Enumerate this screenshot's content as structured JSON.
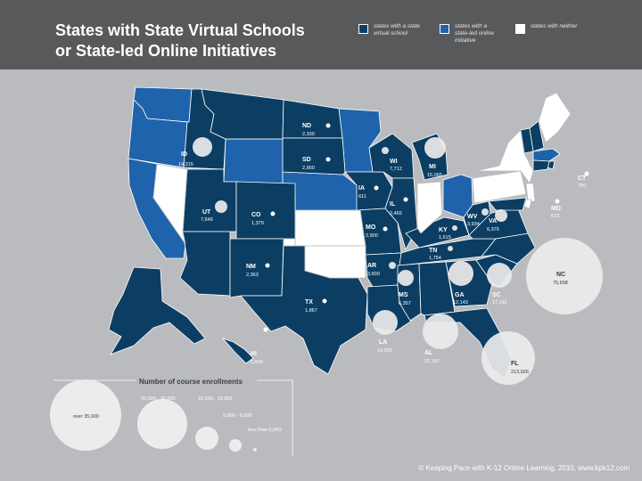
{
  "title_line1": "States with State Virtual Schools",
  "title_line2": "or State-led Online Initiatives",
  "colors": {
    "virtual_school": "#0c3e63",
    "state_led": "#1e63ab",
    "neither": "#ffffff",
    "background": "#b9bbbe",
    "header": "#58595b",
    "bubble": "#ececec"
  },
  "legend": {
    "virtual_school_1": "states with a state",
    "virtual_school_2": "virtual school",
    "state_led_1": "states with a",
    "state_led_2": "state-led online",
    "state_led_3": "initiative",
    "neither_1": "states with neither"
  },
  "states": [
    {
      "abbr": "ID",
      "enrollments": "14,315"
    },
    {
      "abbr": "ND",
      "enrollments": "2,330"
    },
    {
      "abbr": "SD",
      "enrollments": "2,900"
    },
    {
      "abbr": "WI",
      "enrollments": "7,712"
    },
    {
      "abbr": "MI",
      "enrollments": "15,065"
    },
    {
      "abbr": "CT",
      "enrollments": "750"
    },
    {
      "abbr": "IA",
      "enrollments": "611"
    },
    {
      "abbr": "IL",
      "enrollments": "2,465"
    },
    {
      "abbr": "UT",
      "enrollments": "7,646"
    },
    {
      "abbr": "CO",
      "enrollments": "1,379"
    },
    {
      "abbr": "MD",
      "enrollments": "633"
    },
    {
      "abbr": "WV",
      "enrollments": "3,934"
    },
    {
      "abbr": "VA",
      "enrollments": "6,376"
    },
    {
      "abbr": "KY",
      "enrollments": "1,615"
    },
    {
      "abbr": "MO",
      "enrollments": "2,900"
    },
    {
      "abbr": "TN",
      "enrollments": "1,754"
    },
    {
      "abbr": "NM",
      "enrollments": "2,363"
    },
    {
      "abbr": "AR",
      "enrollments": "3,600"
    },
    {
      "abbr": "NC",
      "enrollments": "75,658"
    },
    {
      "abbr": "GA",
      "enrollments": "12,143"
    },
    {
      "abbr": "SC",
      "enrollments": "17,181"
    },
    {
      "abbr": "MS",
      "enrollments": "6,357"
    },
    {
      "abbr": "TX",
      "enrollments": "1,867"
    },
    {
      "abbr": "LA",
      "enrollments": "14,001"
    },
    {
      "abbr": "AL",
      "enrollments": "31,187"
    },
    {
      "abbr": "FL",
      "enrollments": "213,926"
    },
    {
      "abbr": "HI",
      "enrollments": "2,500"
    }
  ],
  "size_legend": {
    "title": "Number of course enrollments",
    "over": "over 35,000",
    "r1": "20,000 - 35,000",
    "r2": "10,000 - 19,999",
    "r3": "5,000 - 9,999",
    "r4": "less than 5,000"
  },
  "footer": "© Keeping Pace with K-12 Online Learning, 2010, www.kpk12.com"
}
